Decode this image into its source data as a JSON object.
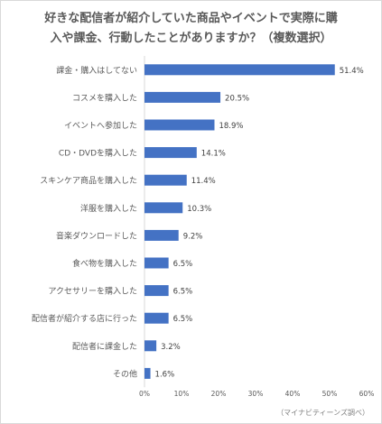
{
  "chart_data": {
    "type": "bar",
    "orientation": "horizontal",
    "title_lines": [
      "好きな配信者が紹介していた商品やイベントで実際に購",
      "入や課金、行動したことがありますか？（複数選択）"
    ],
    "categories": [
      "課金・購入はしてない",
      "コスメを購入した",
      "イベントへ参加した",
      "CD・DVDを購入した",
      "スキンケア商品を購入した",
      "洋服を購入した",
      "音楽ダウンロードした",
      "食べ物を購入した",
      "アクセサリーを購入した",
      "配信者が紹介する店に行った",
      "配信者に課金した",
      "その他"
    ],
    "values": [
      51.4,
      20.5,
      18.9,
      14.1,
      11.4,
      10.3,
      9.2,
      6.5,
      6.5,
      6.5,
      3.2,
      1.6
    ],
    "value_labels": [
      "51.4%",
      "20.5%",
      "18.9%",
      "14.1%",
      "11.4%",
      "10.3%",
      "9.2%",
      "6.5%",
      "6.5%",
      "6.5%",
      "3.2%",
      "1.6%"
    ],
    "xlim": [
      0,
      60
    ],
    "xticks": [
      0,
      10,
      20,
      30,
      40,
      50,
      60
    ],
    "xtick_labels": [
      "0%",
      "10%",
      "20%",
      "30%",
      "40%",
      "50%",
      "60%"
    ],
    "grid": false,
    "bar_color": "#4472c4",
    "source": "（マイナビティーンズ調べ）"
  }
}
